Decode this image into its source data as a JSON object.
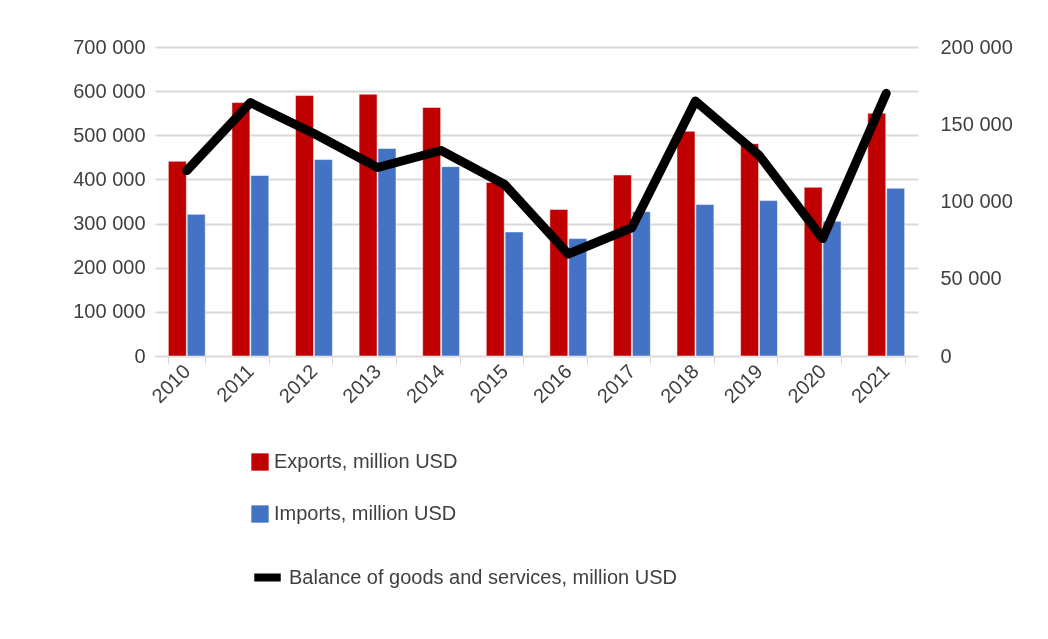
{
  "chart_data": {
    "type": "bar",
    "categories": [
      "2010",
      "2011",
      "2012",
      "2013",
      "2014",
      "2015",
      "2016",
      "2017",
      "2018",
      "2019",
      "2020",
      "2021"
    ],
    "series": [
      {
        "name": "Exports, million USD",
        "color": "#c00000",
        "values": [
          441000,
          574000,
          590000,
          593000,
          563000,
          393000,
          332000,
          410000,
          509000,
          481000,
          382000,
          550000
        ]
      },
      {
        "name": "Imports, million USD",
        "color": "#4472c4",
        "values": [
          321000,
          409000,
          445000,
          470000,
          429000,
          281000,
          266000,
          327000,
          343000,
          352000,
          305000,
          380000
        ]
      },
      {
        "name": "Balance of goods and services, million USD",
        "color": "#000000",
        "type": "line",
        "axis": "y2",
        "values": [
          120000,
          164000,
          144000,
          122000,
          133000,
          111000,
          66000,
          83000,
          165000,
          130000,
          76000,
          170000
        ]
      }
    ],
    "ylim": [
      0,
      700000
    ],
    "yticks": [
      {
        "value": 0,
        "label": "0"
      },
      {
        "value": 100000,
        "label": "100 000"
      },
      {
        "value": 200000,
        "label": "200 000"
      },
      {
        "value": 300000,
        "label": "300 000"
      },
      {
        "value": 400000,
        "label": "400 000"
      },
      {
        "value": 500000,
        "label": "500 000"
      },
      {
        "value": 600000,
        "label": "600 000"
      },
      {
        "value": 700000,
        "label": "700 000"
      }
    ],
    "y2lim": [
      0,
      200000
    ],
    "y2ticks": [
      {
        "value": 0,
        "label": "0"
      },
      {
        "value": 50000,
        "label": "50 000"
      },
      {
        "value": 100000,
        "label": "100 000"
      },
      {
        "value": 150000,
        "label": "150 000"
      },
      {
        "value": 200000,
        "label": "200 000"
      }
    ],
    "grid": "y",
    "legend": "bottom"
  }
}
